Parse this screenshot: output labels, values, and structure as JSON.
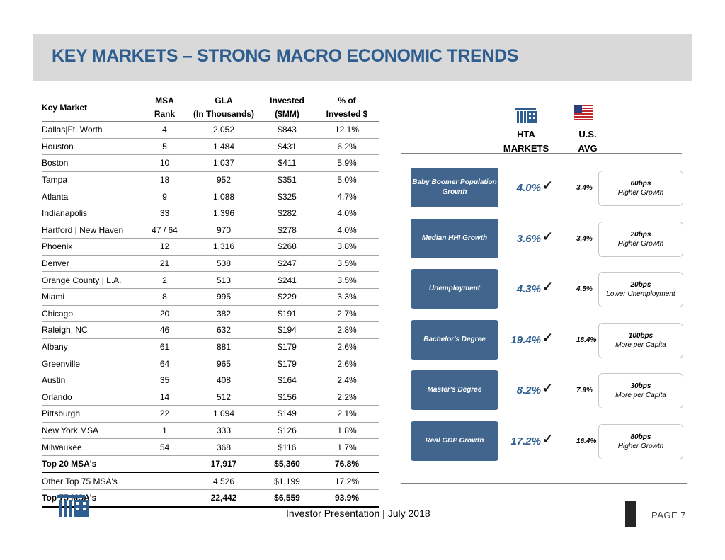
{
  "page": {
    "title": "KEY MARKETS – STRONG MACRO ECONOMIC TRENDS",
    "footer": "Investor Presentation | July 2018",
    "page_number": "PAGE 7"
  },
  "table": {
    "headers": {
      "market": "Key Market",
      "msa_1": "MSA",
      "msa_2": "Rank",
      "gla_1": "GLA",
      "gla_2": "(In Thousands)",
      "inv_1": "Invested",
      "inv_2": "($MM)",
      "pct_1": "% of",
      "pct_2": "Invested $"
    },
    "rows": [
      {
        "market": "Dallas|Ft. Worth",
        "rank": "4",
        "gla": "2,052",
        "invested": "$843",
        "pct": "12.1%"
      },
      {
        "market": "Houston",
        "rank": "5",
        "gla": "1,484",
        "invested": "$431",
        "pct": "6.2%"
      },
      {
        "market": "Boston",
        "rank": "10",
        "gla": "1,037",
        "invested": "$411",
        "pct": "5.9%"
      },
      {
        "market": "Tampa",
        "rank": "18",
        "gla": "952",
        "invested": "$351",
        "pct": "5.0%"
      },
      {
        "market": "Atlanta",
        "rank": "9",
        "gla": "1,088",
        "invested": "$325",
        "pct": "4.7%"
      },
      {
        "market": "Indianapolis",
        "rank": "33",
        "gla": "1,396",
        "invested": "$282",
        "pct": "4.0%"
      },
      {
        "market": "Hartford | New Haven",
        "rank": "47 / 64",
        "gla": "970",
        "invested": "$278",
        "pct": "4.0%"
      },
      {
        "market": "Phoenix",
        "rank": "12",
        "gla": "1,316",
        "invested": "$268",
        "pct": "3.8%"
      },
      {
        "market": "Denver",
        "rank": "21",
        "gla": "538",
        "invested": "$247",
        "pct": "3.5%"
      },
      {
        "market": "Orange County | L.A.",
        "rank": "2",
        "gla": "513",
        "invested": "$241",
        "pct": "3.5%"
      },
      {
        "market": "Miami",
        "rank": "8",
        "gla": "995",
        "invested": "$229",
        "pct": "3.3%"
      },
      {
        "market": "Chicago",
        "rank": "20",
        "gla": "382",
        "invested": "$191",
        "pct": "2.7%"
      },
      {
        "market": "Raleigh, NC",
        "rank": "46",
        "gla": "632",
        "invested": "$194",
        "pct": "2.8%"
      },
      {
        "market": "Albany",
        "rank": "61",
        "gla": "881",
        "invested": "$179",
        "pct": "2.6%"
      },
      {
        "market": "Greenville",
        "rank": "64",
        "gla": "965",
        "invested": "$179",
        "pct": "2.6%"
      },
      {
        "market": "Austin",
        "rank": "35",
        "gla": "408",
        "invested": "$164",
        "pct": "2.4%"
      },
      {
        "market": "Orlando",
        "rank": "14",
        "gla": "512",
        "invested": "$156",
        "pct": "2.2%"
      },
      {
        "market": "Pittsburgh",
        "rank": "22",
        "gla": "1,094",
        "invested": "$149",
        "pct": "2.1%"
      },
      {
        "market": "New York MSA",
        "rank": "1",
        "gla": "333",
        "invested": "$126",
        "pct": "1.8%"
      },
      {
        "market": "Milwaukee",
        "rank": "54",
        "gla": "368",
        "invested": "$116",
        "pct": "1.7%"
      }
    ],
    "top20": {
      "market": "Top 20 MSA's",
      "rank": "",
      "gla": "17,917",
      "invested": "$5,360",
      "pct": "76.8%"
    },
    "other": {
      "market": "Other Top 75 MSA's",
      "rank": "",
      "gla": "4,526",
      "invested": "$1,199",
      "pct": "17.2%"
    },
    "top75": {
      "market": "Top 75 MSA's",
      "rank": "",
      "gla": "22,442",
      "invested": "$6,559",
      "pct": "93.9%"
    }
  },
  "comparison": {
    "hta_label_1": "HTA",
    "hta_label_2": "MARKETS",
    "us_label_1": "U.S.",
    "us_label_2": "AVG",
    "check_glyph": "✓",
    "metrics": [
      {
        "label": "Baby Boomer Population Growth",
        "hta": "4.0%",
        "us": "3.4%",
        "diff_1": "60bps",
        "diff_2": "Higher Growth"
      },
      {
        "label": "Median HHI Growth",
        "hta": "3.6%",
        "us": "3.4%",
        "diff_1": "20bps",
        "diff_2": "Higher Growth"
      },
      {
        "label": "Unemployment",
        "hta": "4.3%",
        "us": "4.5%",
        "diff_1": "20bps",
        "diff_2": "Lower Unemployment"
      },
      {
        "label": "Bachelor's Degree",
        "hta": "19.4%",
        "us": "18.4%",
        "diff_1": "100bps",
        "diff_2": "More per Capita"
      },
      {
        "label": "Master's Degree",
        "hta": "8.2%",
        "us": "7.9%",
        "diff_1": "30bps",
        "diff_2": "More per Capita"
      },
      {
        "label": "Real GDP Growth",
        "hta": "17.2%",
        "us": "16.4%",
        "diff_1": "80bps",
        "diff_2": "Higher Growth"
      }
    ]
  },
  "icons": {
    "hta_building": "building-icon",
    "us_flag": "us-flag-icon",
    "footer_logo": "hta-logo"
  },
  "colors": {
    "title": "#2e5d8f",
    "metric_box": "#41658c",
    "title_bar": "#d9d9d9"
  }
}
